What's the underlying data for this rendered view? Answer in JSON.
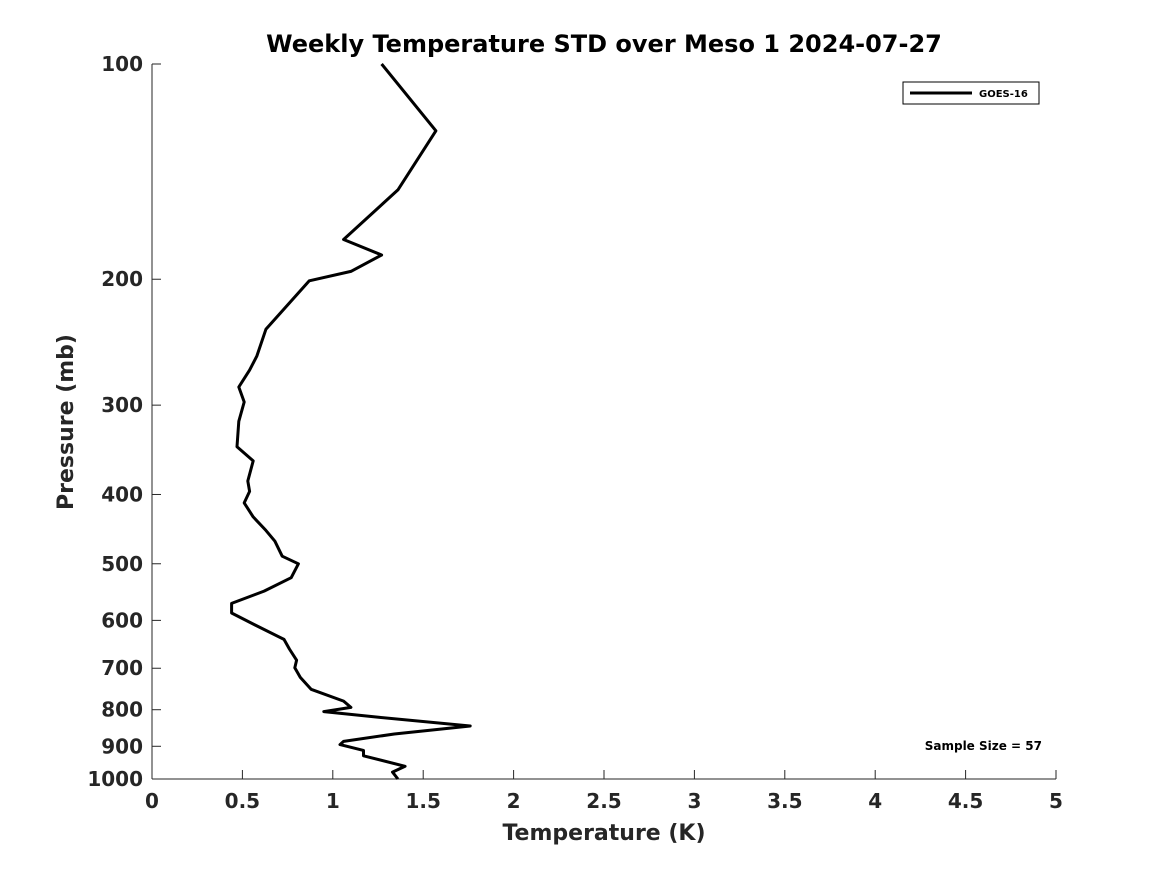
{
  "chart_data": {
    "type": "line",
    "title": "Weekly Temperature STD over Meso 1 2024-07-27",
    "xlabel": "Temperature (K)",
    "ylabel": "Pressure (mb)",
    "xlim": [
      0,
      5
    ],
    "ylim": [
      100,
      1000
    ],
    "yscale": "log",
    "yreversed": true,
    "x_ticks": [
      0,
      0.5,
      1,
      1.5,
      2,
      2.5,
      3,
      3.5,
      4,
      4.5,
      5
    ],
    "x_tick_labels": [
      "0",
      "0.5",
      "1",
      "1.5",
      "2",
      "2.5",
      "3",
      "3.5",
      "4",
      "4.5",
      "5"
    ],
    "y_ticks": [
      100,
      200,
      300,
      400,
      500,
      600,
      700,
      800,
      900,
      1000
    ],
    "y_tick_labels": [
      "100",
      "200",
      "300",
      "400",
      "500",
      "600",
      "700",
      "800",
      "900",
      "1000"
    ],
    "grid": false,
    "legend_position": "top-right",
    "annotation": "Sample Size = 57",
    "series": [
      {
        "name": "GOES-16",
        "color": "#000000",
        "points": [
          [
            1.27,
            100
          ],
          [
            1.57,
            124
          ],
          [
            1.36,
            150
          ],
          [
            1.06,
            176
          ],
          [
            1.27,
            185
          ],
          [
            1.1,
            195
          ],
          [
            0.87,
            201
          ],
          [
            0.63,
            235
          ],
          [
            0.58,
            256
          ],
          [
            0.54,
            268
          ],
          [
            0.48,
            283
          ],
          [
            0.51,
            297
          ],
          [
            0.48,
            316
          ],
          [
            0.47,
            343
          ],
          [
            0.56,
            359
          ],
          [
            0.53,
            383
          ],
          [
            0.54,
            396
          ],
          [
            0.51,
            411
          ],
          [
            0.56,
            430
          ],
          [
            0.63,
            449
          ],
          [
            0.68,
            465
          ],
          [
            0.72,
            488
          ],
          [
            0.81,
            500
          ],
          [
            0.77,
            523
          ],
          [
            0.62,
            546
          ],
          [
            0.44,
            568
          ],
          [
            0.44,
            586
          ],
          [
            0.57,
            609
          ],
          [
            0.73,
            638
          ],
          [
            0.76,
            658
          ],
          [
            0.8,
            682
          ],
          [
            0.79,
            699
          ],
          [
            0.82,
            721
          ],
          [
            0.88,
            749
          ],
          [
            1.06,
            778
          ],
          [
            1.1,
            794
          ],
          [
            0.95,
            805
          ],
          [
            1.26,
            820
          ],
          [
            1.76,
            843
          ],
          [
            1.34,
            865
          ],
          [
            1.06,
            886
          ],
          [
            1.04,
            895
          ],
          [
            1.17,
            912
          ],
          [
            1.17,
            928
          ],
          [
            1.4,
            960
          ],
          [
            1.33,
            978
          ],
          [
            1.36,
            1000
          ]
        ]
      }
    ]
  }
}
